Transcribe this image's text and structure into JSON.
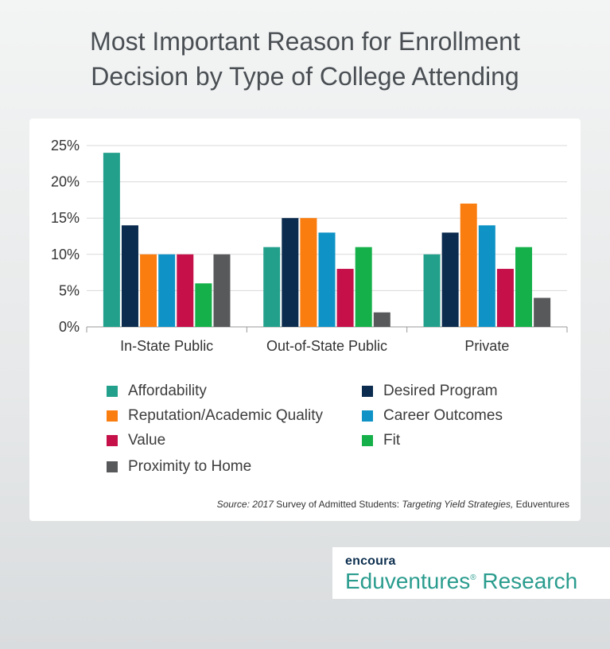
{
  "title_lines": [
    "Most Important Reason for Enrollment",
    "Decision by Type of College Attending"
  ],
  "chart_data": {
    "type": "bar",
    "categories": [
      "In-State Public",
      "Out-of-State Public",
      "Private"
    ],
    "series": [
      {
        "name": "Affordability",
        "color": "#23a08b",
        "values": [
          24,
          11,
          10
        ]
      },
      {
        "name": "Desired Program",
        "color": "#0b2c4e",
        "values": [
          14,
          15,
          13
        ]
      },
      {
        "name": "Reputation/Academic Quality",
        "color": "#fa7d10",
        "values": [
          10,
          15,
          17
        ]
      },
      {
        "name": "Career Outcomes",
        "color": "#0f93c6",
        "values": [
          10,
          13,
          14
        ]
      },
      {
        "name": "Value",
        "color": "#c5104a",
        "values": [
          10,
          8,
          8
        ]
      },
      {
        "name": "Fit",
        "color": "#15b04a",
        "values": [
          6,
          11,
          11
        ]
      },
      {
        "name": "Proximity to Home",
        "color": "#58595b",
        "values": [
          10,
          2,
          4
        ]
      }
    ],
    "ylim": [
      0,
      25
    ],
    "yticks": [
      0,
      5,
      10,
      15,
      20,
      25
    ],
    "ytick_labels": [
      "0%",
      "5%",
      "10%",
      "15%",
      "20%",
      "25%"
    ],
    "grid": true,
    "legend_placement": "bottom"
  },
  "source": {
    "prefix": "Source: 2017",
    "middle": " Survey of Admitted Students",
    "colon": ": ",
    "italic": "Targeting Yield Strategies,",
    "suffix": " Eduventures"
  },
  "brand": {
    "top": "encoura",
    "bottom": "Eduventures",
    "reg": "®",
    "bottom_rest": " Research"
  }
}
